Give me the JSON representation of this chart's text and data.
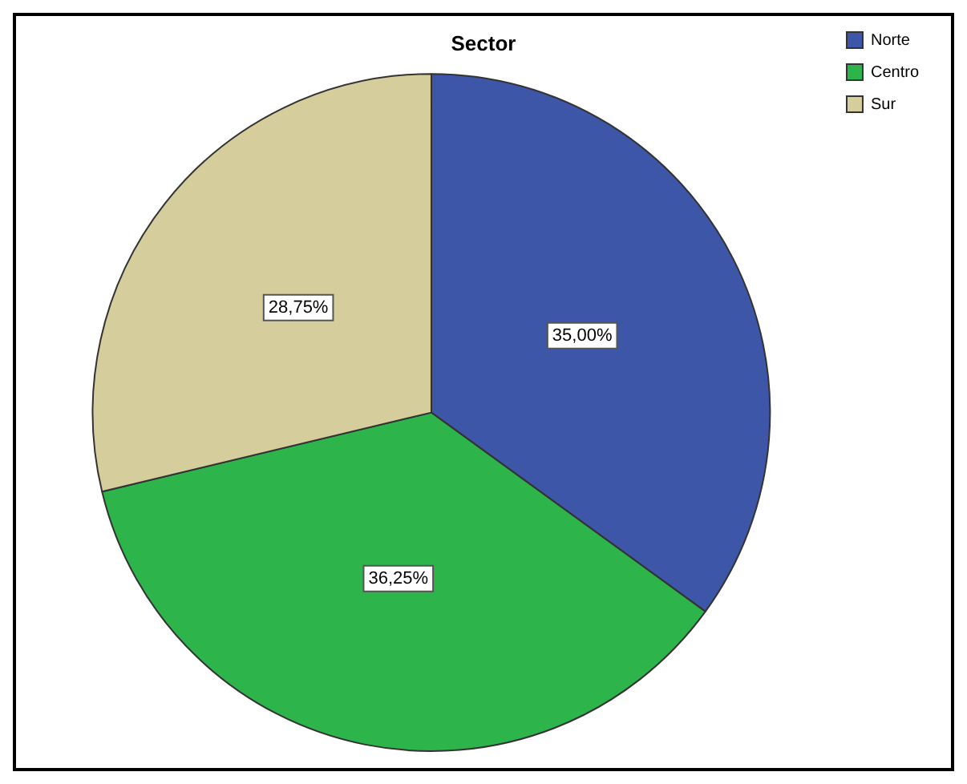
{
  "chart_data": {
    "type": "pie",
    "title": "Sector",
    "categories": [
      "Norte",
      "Centro",
      "Sur"
    ],
    "values": [
      35.0,
      36.25,
      28.75
    ],
    "colors": [
      "#3d56a8",
      "#2db54b",
      "#d5cd9b"
    ],
    "value_labels": [
      "35,00%",
      "36,25%",
      "28,75%"
    ],
    "legend": "top right"
  }
}
